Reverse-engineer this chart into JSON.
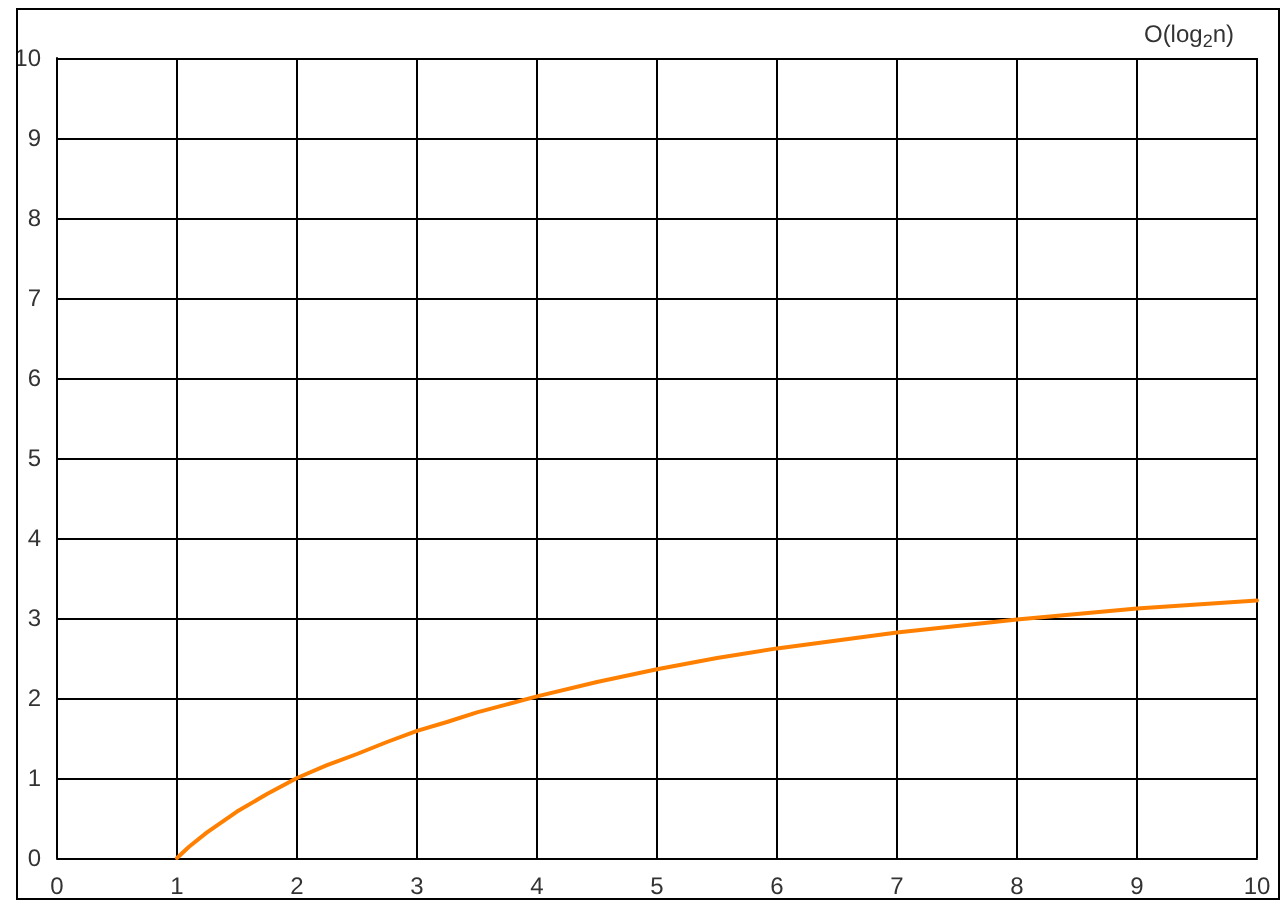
{
  "chart_data": {
    "type": "line",
    "title": "O(log$_{2}$n)",
    "x": [
      1,
      1.1,
      1.25,
      1.5,
      1.75,
      2,
      2.25,
      2.5,
      2.75,
      3,
      3.25,
      3.5,
      3.75,
      4,
      4.5,
      5,
      5.5,
      6,
      6.5,
      7,
      7.5,
      8,
      8.5,
      9,
      9.5,
      10
    ],
    "values": [
      0,
      0.14,
      0.32,
      0.58,
      0.8,
      1,
      1.16,
      1.3,
      1.45,
      1.59,
      1.7,
      1.82,
      1.92,
      2.02,
      2.2,
      2.36,
      2.5,
      2.62,
      2.72,
      2.82,
      2.9,
      2.98,
      3.05,
      3.12,
      3.17,
      3.22
    ],
    "color": "#ff8000",
    "xlim": [
      0,
      10
    ],
    "xticks": [
      0,
      1,
      2,
      3,
      4,
      5,
      6,
      7,
      8,
      9,
      10
    ],
    "ylim": [
      0,
      10
    ],
    "yticks": [
      0,
      1,
      2,
      3,
      4,
      5,
      6,
      7,
      8,
      9,
      10
    ],
    "grid": true
  }
}
